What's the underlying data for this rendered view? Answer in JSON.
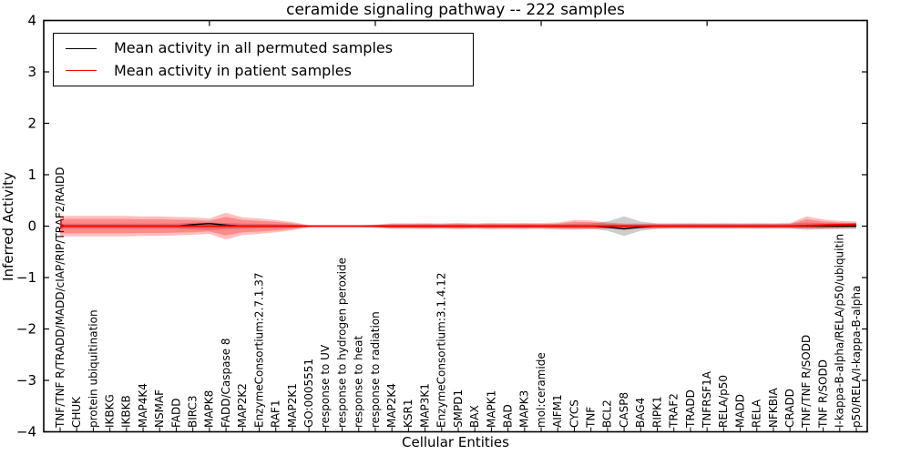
{
  "title": "ceramide signaling pathway -- 222 samples",
  "legend": {
    "items": [
      {
        "label": "Mean activity in all permuted samples",
        "color": "#000000"
      },
      {
        "label": "Mean activity in patient samples",
        "color": "#ff0000"
      }
    ]
  },
  "chart_data": {
    "type": "line",
    "title": "ceramide signaling pathway -- 222 samples",
    "xlabel": "Cellular Entities",
    "ylabel": "Inferred Activity",
    "ylim": [
      -4,
      4
    ],
    "yticks": [
      -4,
      -3,
      -2,
      -1,
      0,
      1,
      2,
      3,
      4
    ],
    "grid": false,
    "legend_position": "upper left",
    "zero_line_style": "dotted",
    "top_tick_indices": [
      9,
      19,
      29,
      39
    ],
    "categories": [
      "TNF/TNF R/TRADD/MADD/cIAP/RIP/TRAF2/RAIDD",
      "CHUK",
      "protein ubiquitination",
      "IKBKG",
      "IKBKB",
      "MAP4K4",
      "NSMAF",
      "FADD",
      "BIRC3",
      "MAPK8",
      "FADD/Caspase 8",
      "MAP2K2",
      "EnzymeConsortium:2.7.1.37",
      "RAF1",
      "MAP2K1",
      "GO:0005551",
      "response to UV",
      "response to hydrogen peroxide",
      "response to heat",
      "response to radiation",
      "MAP2K4",
      "KSR1",
      "MAP3K1",
      "EnzymeConsortium:3.1.4.12",
      "SMPD1",
      "BAX",
      "MAPK1",
      "BAD",
      "MAPK3",
      "mol:ceramide",
      "AIFM1",
      "CYCS",
      "TNF",
      "BCL2",
      "CASP8",
      "BAG4",
      "RIPK1",
      "TRAF2",
      "TRADD",
      "TNFRSF1A",
      "RELA/p50",
      "MADD",
      "RELA",
      "NFKBIA",
      "CRADD",
      "TNF/TNF R/SODD",
      "TNF R/SODD",
      "I-kappa-B-alpha/RELA/p50/ubiquitin",
      "p50/RELA/I-kappa-B-alpha"
    ],
    "series": [
      {
        "name": "Mean activity in all permuted samples",
        "color": "#000000",
        "values": [
          0,
          0,
          0,
          0,
          0,
          0,
          0,
          0,
          0.03,
          0.05,
          0.02,
          0,
          0,
          0,
          0,
          0,
          0,
          0,
          0,
          0,
          0,
          0,
          0,
          0,
          0,
          0,
          0,
          0,
          0,
          0,
          0,
          0,
          0,
          -0.02,
          -0.055,
          -0.02,
          0,
          0,
          0,
          0,
          0,
          0,
          0,
          0,
          0,
          0,
          0,
          0,
          0
        ]
      },
      {
        "name": "Mean activity in patient samples",
        "color": "#ff0000",
        "values": [
          0,
          0,
          0,
          0,
          0,
          0,
          0,
          0,
          0,
          0,
          0,
          0,
          0,
          0,
          0,
          0,
          0,
          0,
          0,
          0,
          0,
          0,
          0,
          0,
          0,
          0,
          0,
          0,
          0,
          0,
          0,
          0,
          0,
          0,
          0,
          0,
          0,
          0,
          0,
          0,
          0,
          0,
          0,
          0,
          0,
          0.01,
          0.02,
          0.025,
          0.03
        ]
      }
    ],
    "bands": {
      "permuted_range": {
        "color": "rgba(130,130,130,0.40)",
        "half_width": [
          0.05,
          0.05,
          0.05,
          0.05,
          0.05,
          0.05,
          0.05,
          0.05,
          0.065,
          0.075,
          0.06,
          0.05,
          0.045,
          0.04,
          0.03,
          0.012,
          0.01,
          0.01,
          0.01,
          0.02,
          0.035,
          0.035,
          0.035,
          0.035,
          0.035,
          0.035,
          0.035,
          0.035,
          0.035,
          0.035,
          0.04,
          0.045,
          0.05,
          0.09,
          0.19,
          0.09,
          0.05,
          0.05,
          0.05,
          0.05,
          0.05,
          0.05,
          0.05,
          0.05,
          0.05,
          0.07,
          0.06,
          0.06,
          0.06
        ]
      },
      "patient_range": {
        "color": "rgba(255,0,0,0.25)",
        "inner_color": "rgba(255,0,0,0.28)",
        "inner_scale": 0.7,
        "upper": [
          0.2,
          0.2,
          0.2,
          0.2,
          0.2,
          0.19,
          0.19,
          0.18,
          0.17,
          0.15,
          0.26,
          0.17,
          0.15,
          0.12,
          0.08,
          0.02,
          0.015,
          0.015,
          0.015,
          0.03,
          0.055,
          0.055,
          0.06,
          0.055,
          0.065,
          0.055,
          0.065,
          0.06,
          0.065,
          0.06,
          0.07,
          0.12,
          0.11,
          0.07,
          0.05,
          0.05,
          0.05,
          0.05,
          0.055,
          0.05,
          0.055,
          0.05,
          0.055,
          0.05,
          0.06,
          0.19,
          0.13,
          0.1,
          0.09
        ],
        "lower": [
          0.2,
          0.2,
          0.2,
          0.2,
          0.2,
          0.19,
          0.19,
          0.18,
          0.17,
          0.15,
          0.26,
          0.17,
          0.15,
          0.12,
          0.08,
          0.02,
          0.015,
          0.015,
          0.015,
          0.03,
          0.05,
          0.05,
          0.055,
          0.05,
          0.06,
          0.05,
          0.06,
          0.055,
          0.06,
          0.055,
          0.065,
          0.07,
          0.06,
          0.05,
          0.05,
          0.05,
          0.05,
          0.04,
          0.045,
          0.04,
          0.045,
          0.04,
          0.045,
          0.04,
          0.045,
          0.05,
          0.05,
          0.04,
          0.03
        ]
      }
    }
  }
}
